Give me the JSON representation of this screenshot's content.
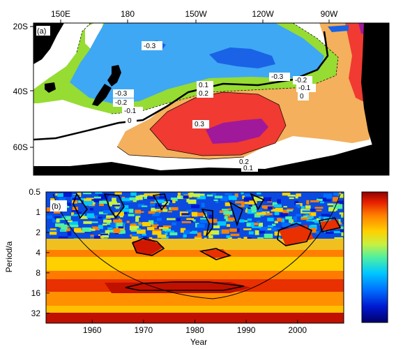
{
  "chart_data": [
    {
      "type": "heatmap",
      "panel_label": "(a)",
      "x_ticks": [
        "150E",
        "180",
        "150W",
        "120W",
        "90W"
      ],
      "y_ticks": [
        "20S",
        "40S",
        "60S"
      ],
      "contour_levels": [
        -0.3,
        -0.2,
        -0.1,
        0,
        0.1,
        0.2,
        0.3
      ],
      "contour_labels": [
        "-0.3",
        "-0.3",
        "-0.2",
        "-0.1",
        "0",
        "-0.3",
        "-0.2",
        "-0.1",
        "0",
        "0.1",
        "0.2",
        "0.3",
        "0.2",
        "0.1"
      ],
      "colors": {
        "magenta": "#a0199a",
        "red": "#f03a32",
        "orange": "#f4b05c",
        "white": "#ffffff",
        "green": "#96dc32",
        "lightblue": "#3ea8f4",
        "blue": "#1a63e6",
        "land": "#000000"
      }
    },
    {
      "type": "heatmap",
      "panel_label": "(b)",
      "xlabel": "Year",
      "ylabel": "Period/a",
      "x_ticks": [
        "1960",
        "1970",
        "1980",
        "1990",
        "2000"
      ],
      "y_ticks": [
        "0.5",
        "1",
        "2",
        "4",
        "8",
        "16",
        "32"
      ],
      "xlim": [
        1951,
        2009
      ],
      "period_range": [
        0.5,
        45
      ],
      "colorbar": [
        "#00006a",
        "#0018d0",
        "#0070ff",
        "#00c8ff",
        "#50f0a0",
        "#c8f040",
        "#ffd000",
        "#ff8000",
        "#e82000",
        "#900000"
      ]
    }
  ]
}
